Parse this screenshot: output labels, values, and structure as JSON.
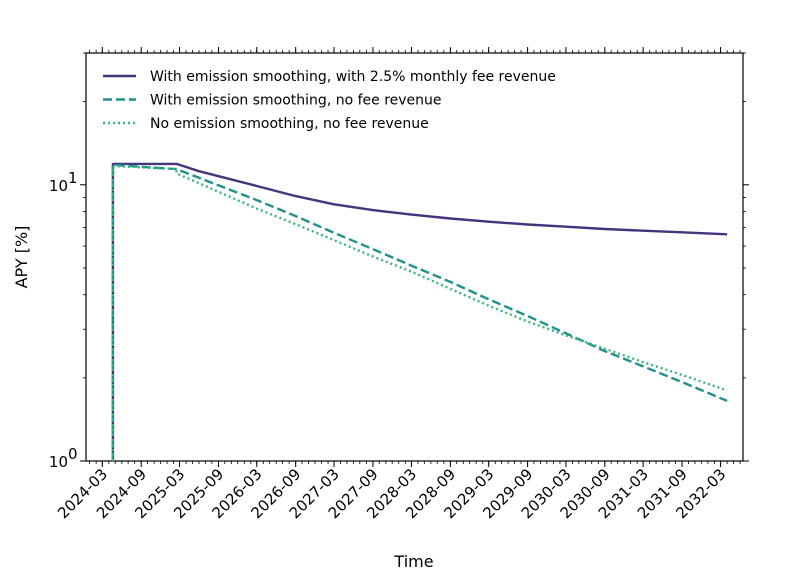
{
  "chart_data": {
    "type": "line",
    "title": "",
    "xlabel": "Time",
    "ylabel": "APY [%]",
    "yscale": "log",
    "ylim": [
      1,
      30
    ],
    "xlim": [
      "2023-12-15",
      "2032-06-15"
    ],
    "grid": false,
    "legend_position": "top-left",
    "x_tick_labels": [
      "2024-03",
      "2024-09",
      "2025-03",
      "2025-09",
      "2026-03",
      "2026-09",
      "2027-03",
      "2027-09",
      "2028-03",
      "2028-09",
      "2029-03",
      "2029-09",
      "2030-03",
      "2030-09",
      "2031-03",
      "2031-09",
      "2032-03"
    ],
    "y_tick_labels": [
      {
        "value": 1,
        "base": "10",
        "exp": "0"
      },
      {
        "value": 10,
        "base": "10",
        "exp": "1"
      }
    ],
    "series": [
      {
        "name": "With emission smoothing, with 2.5% monthly fee revenue",
        "color": "#46337e",
        "dash": "solid",
        "x": [
          "2024-04-20",
          "2024-04-20",
          "2025-02-15",
          "2025-06-01",
          "2026-03-01",
          "2026-09-01",
          "2027-03-01",
          "2027-09-01",
          "2028-03-01",
          "2028-09-01",
          "2029-03-01",
          "2029-09-01",
          "2030-03-01",
          "2030-09-01",
          "2031-03-01",
          "2031-09-01",
          "2032-04-01"
        ],
        "y": [
          1.0,
          11.9,
          11.9,
          11.2,
          9.9,
          9.1,
          8.5,
          8.1,
          7.8,
          7.55,
          7.35,
          7.18,
          7.05,
          6.92,
          6.82,
          6.73,
          6.62
        ]
      },
      {
        "name": "With emission smoothing, no fee revenue",
        "color": "#21918c",
        "dash": "dashed",
        "x": [
          "2024-04-20",
          "2024-04-20",
          "2025-02-15",
          "2025-06-01",
          "2026-03-01",
          "2026-09-01",
          "2027-03-01",
          "2027-09-01",
          "2028-03-01",
          "2028-09-01",
          "2029-03-01",
          "2029-09-01",
          "2030-03-01",
          "2030-09-01",
          "2031-03-01",
          "2031-09-01",
          "2032-04-01"
        ],
        "y": [
          1.0,
          11.8,
          11.4,
          10.6,
          8.8,
          7.7,
          6.7,
          5.85,
          5.1,
          4.45,
          3.85,
          3.35,
          2.9,
          2.5,
          2.2,
          1.93,
          1.65
        ]
      },
      {
        "name": "No emission smoothing, no fee revenue",
        "color": "#35b779",
        "dash": "dotted",
        "x": [
          "2024-04-20",
          "2024-04-20",
          "2025-02-15",
          "2025-02-15",
          "2026-03-01",
          "2026-09-01",
          "2027-03-01",
          "2027-09-01",
          "2028-03-01",
          "2028-09-01",
          "2029-03-01",
          "2029-09-01",
          "2030-03-01",
          "2030-09-01",
          "2031-03-01",
          "2031-09-01",
          "2032-04-01"
        ],
        "y": [
          1.0,
          11.7,
          11.4,
          11.0,
          8.2,
          7.2,
          6.3,
          5.5,
          4.85,
          4.2,
          3.65,
          3.2,
          2.85,
          2.55,
          2.28,
          2.05,
          1.8
        ]
      }
    ]
  }
}
